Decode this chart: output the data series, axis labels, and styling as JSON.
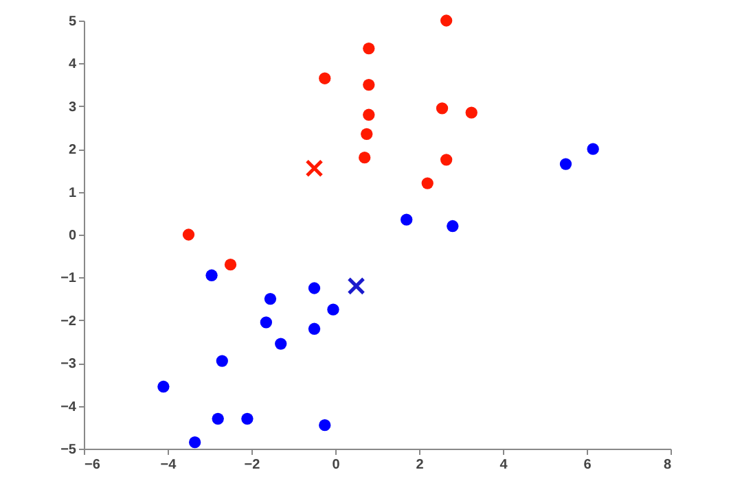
{
  "chart_data": {
    "type": "scatter",
    "xlim": [
      -6,
      8
    ],
    "ylim": [
      -5,
      5
    ],
    "xticks": [
      -6,
      -4,
      -2,
      0,
      2,
      4,
      6,
      8
    ],
    "yticks": [
      -5,
      -4,
      -3,
      -2,
      -1,
      0,
      1,
      2,
      3,
      4,
      5
    ],
    "grid": false,
    "series": [
      {
        "color": "#ff1a00",
        "marker": "circle",
        "x": [
          -0.25,
          0.8,
          0.8,
          0.8,
          0.75,
          0.7,
          2.65,
          2.55,
          3.25,
          2.2,
          2.65,
          -3.5,
          -2.5
        ],
        "values": [
          3.65,
          4.35,
          3.5,
          2.8,
          2.35,
          1.8,
          5.0,
          2.95,
          2.85,
          1.2,
          1.75,
          0.0,
          -0.7
        ]
      },
      {
        "color": "#0000ff",
        "marker": "circle",
        "x": [
          -2.95,
          -1.55,
          -1.65,
          -1.3,
          -0.5,
          -0.5,
          -0.05,
          -2.7,
          -4.1,
          -2.8,
          -2.1,
          -3.35,
          -0.25,
          1.7,
          2.8,
          5.5,
          6.15
        ],
        "values": [
          -0.95,
          -1.5,
          -2.05,
          -2.55,
          -1.25,
          -2.2,
          -1.75,
          -2.95,
          -3.55,
          -4.3,
          -4.3,
          -4.85,
          -4.45,
          0.35,
          0.2,
          1.65,
          2.0
        ]
      },
      {
        "color": "#ff1a00",
        "marker": "cross",
        "x": [
          -0.5
        ],
        "values": [
          1.55
        ]
      },
      {
        "color": "#1a1acc",
        "marker": "cross",
        "x": [
          0.5
        ],
        "values": [
          -1.2
        ]
      }
    ]
  }
}
